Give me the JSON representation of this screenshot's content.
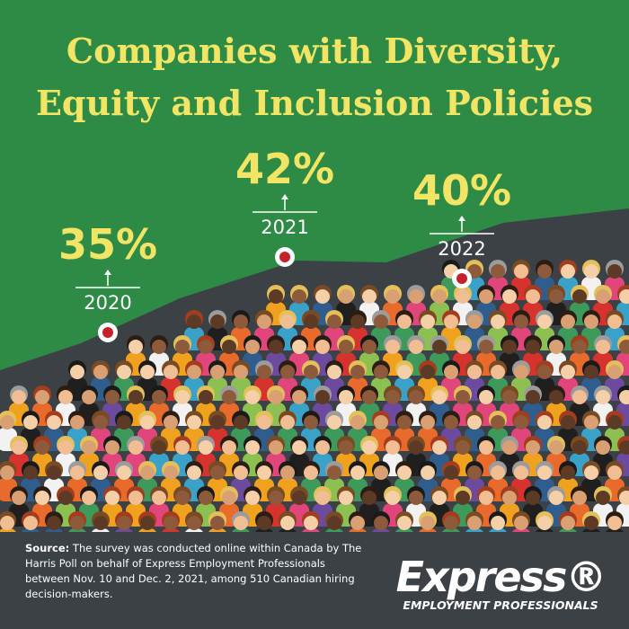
{
  "chart_data": {
    "type": "line",
    "title": "Companies with Diversity, Equity and Inclusion Policies",
    "categories": [
      "2020",
      "2021",
      "2022"
    ],
    "values": [
      35,
      42,
      40
    ],
    "value_labels": [
      "35%",
      "42%",
      "40%"
    ],
    "color": "#f2e566"
  },
  "footer": {
    "source_label": "Source:",
    "source": "The survey was conducted online within Canada by The Harris Poll on behalf of Express Employment Professionals between Nov. 10 and Dec. 2, 2021, among 510 Canadian hiring decision-makers.",
    "logo_name": "Express®",
    "logo_tagline": "EMPLOYMENT PROFESSIONALS"
  }
}
